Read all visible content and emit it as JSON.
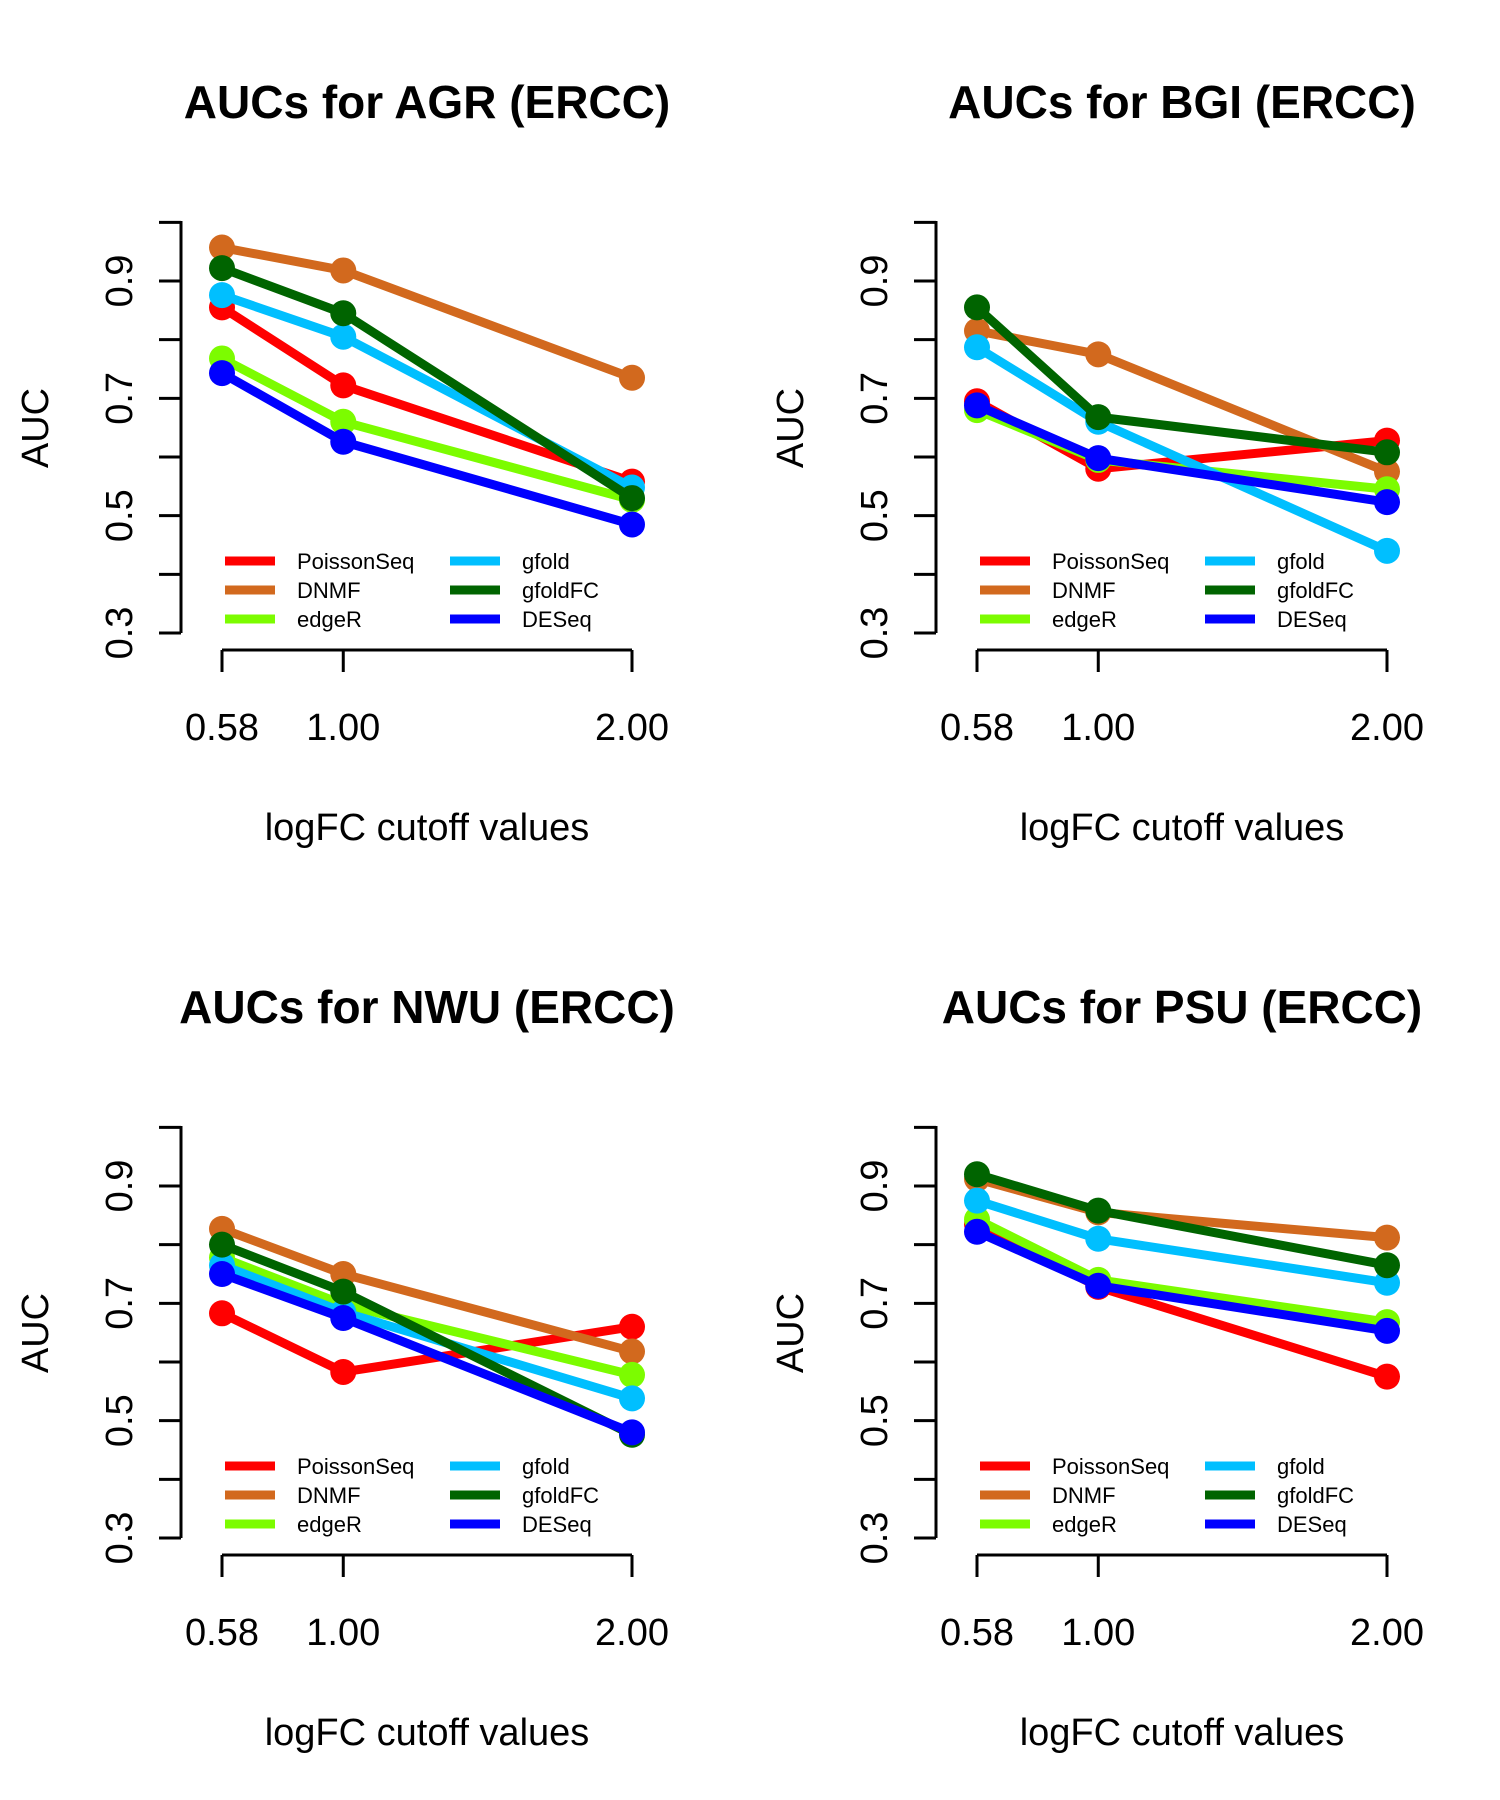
{
  "chart_data": [
    {
      "type": "line",
      "title": "AUCs for AGR (ERCC)",
      "xlabel": "logFC cutoff values",
      "ylabel": "AUC",
      "x": [
        0.58,
        1.0,
        2.0
      ],
      "x_tick_labels": [
        "0.58",
        "1.00",
        "2.00"
      ],
      "y_ticks": [
        0.3,
        0.5,
        0.7,
        0.9
      ],
      "y_tick_labels": [
        "0.3",
        "0.5",
        "0.7",
        "0.9"
      ],
      "ylim": [
        0.3,
        1.0
      ],
      "legend_position": "bottom-left",
      "series": [
        {
          "name": "PoissonSeq",
          "color": "#ff0000",
          "values": [
            0.855,
            0.722,
            0.558
          ]
        },
        {
          "name": "DNMF",
          "color": "#d2691e",
          "values": [
            0.957,
            0.918,
            0.735
          ]
        },
        {
          "name": "edgeR",
          "color": "#7cfc00",
          "values": [
            0.768,
            0.66,
            0.527
          ]
        },
        {
          "name": "gfold",
          "color": "#00bfff",
          "values": [
            0.876,
            0.805,
            0.548
          ]
        },
        {
          "name": "gfoldFC",
          "color": "#006400",
          "values": [
            0.922,
            0.845,
            0.53
          ]
        },
        {
          "name": "DESeq",
          "color": "#0000ff",
          "values": [
            0.743,
            0.626,
            0.485
          ]
        }
      ]
    },
    {
      "type": "line",
      "title": "AUCs for BGI (ERCC)",
      "xlabel": "logFC cutoff values",
      "ylabel": "AUC",
      "x": [
        0.58,
        1.0,
        2.0
      ],
      "x_tick_labels": [
        "0.58",
        "1.00",
        "2.00"
      ],
      "y_ticks": [
        0.3,
        0.5,
        0.7,
        0.9
      ],
      "y_tick_labels": [
        "0.3",
        "0.5",
        "0.7",
        "0.9"
      ],
      "ylim": [
        0.3,
        1.0
      ],
      "legend_position": "bottom-left",
      "series": [
        {
          "name": "PoissonSeq",
          "color": "#ff0000",
          "values": [
            0.695,
            0.58,
            0.628
          ]
        },
        {
          "name": "DNMF",
          "color": "#d2691e",
          "values": [
            0.815,
            0.775,
            0.575
          ]
        },
        {
          "name": "edgeR",
          "color": "#7cfc00",
          "values": [
            0.68,
            0.595,
            0.545
          ]
        },
        {
          "name": "gfold",
          "color": "#00bfff",
          "values": [
            0.787,
            0.66,
            0.44
          ]
        },
        {
          "name": "gfoldFC",
          "color": "#006400",
          "values": [
            0.855,
            0.668,
            0.608
          ]
        },
        {
          "name": "DESeq",
          "color": "#0000ff",
          "values": [
            0.688,
            0.598,
            0.523
          ]
        }
      ]
    },
    {
      "type": "line",
      "title": "AUCs for NWU (ERCC)",
      "xlabel": "logFC cutoff values",
      "ylabel": "AUC",
      "x": [
        0.58,
        1.0,
        2.0
      ],
      "x_tick_labels": [
        "0.58",
        "1.00",
        "2.00"
      ],
      "y_ticks": [
        0.3,
        0.5,
        0.7,
        0.9
      ],
      "y_tick_labels": [
        "0.3",
        "0.5",
        "0.7",
        "0.9"
      ],
      "ylim": [
        0.3,
        1.0
      ],
      "legend_position": "bottom-left",
      "series": [
        {
          "name": "PoissonSeq",
          "color": "#ff0000",
          "values": [
            0.683,
            0.583,
            0.66
          ]
        },
        {
          "name": "DNMF",
          "color": "#d2691e",
          "values": [
            0.827,
            0.75,
            0.618
          ]
        },
        {
          "name": "edgeR",
          "color": "#7cfc00",
          "values": [
            0.778,
            0.698,
            0.578
          ]
        },
        {
          "name": "gfold",
          "color": "#00bfff",
          "values": [
            0.765,
            0.685,
            0.538
          ]
        },
        {
          "name": "gfoldFC",
          "color": "#006400",
          "values": [
            0.8,
            0.72,
            0.476
          ]
        },
        {
          "name": "DESeq",
          "color": "#0000ff",
          "values": [
            0.75,
            0.675,
            0.48
          ]
        }
      ]
    },
    {
      "type": "line",
      "title": "AUCs for PSU (ERCC)",
      "xlabel": "logFC cutoff values",
      "ylabel": "AUC",
      "x": [
        0.58,
        1.0,
        2.0
      ],
      "x_tick_labels": [
        "0.58",
        "1.00",
        "2.00"
      ],
      "y_ticks": [
        0.3,
        0.5,
        0.7,
        0.9
      ],
      "y_tick_labels": [
        "0.3",
        "0.5",
        "0.7",
        "0.9"
      ],
      "ylim": [
        0.3,
        1.0
      ],
      "legend_position": "bottom-left",
      "series": [
        {
          "name": "PoissonSeq",
          "color": "#ff0000",
          "values": [
            0.835,
            0.728,
            0.575
          ]
        },
        {
          "name": "DNMF",
          "color": "#d2691e",
          "values": [
            0.912,
            0.855,
            0.812
          ]
        },
        {
          "name": "edgeR",
          "color": "#7cfc00",
          "values": [
            0.843,
            0.74,
            0.668
          ]
        },
        {
          "name": "gfold",
          "color": "#00bfff",
          "values": [
            0.875,
            0.81,
            0.735
          ]
        },
        {
          "name": "gfoldFC",
          "color": "#006400",
          "values": [
            0.92,
            0.858,
            0.765
          ]
        },
        {
          "name": "DESeq",
          "color": "#0000ff",
          "values": [
            0.822,
            0.73,
            0.653
          ]
        }
      ]
    }
  ]
}
